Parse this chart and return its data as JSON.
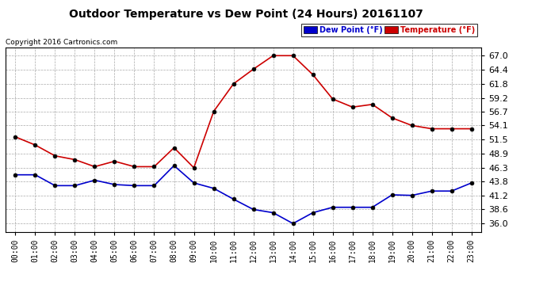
{
  "title": "Outdoor Temperature vs Dew Point (24 Hours) 20161107",
  "copyright": "Copyright 2016 Cartronics.com",
  "hours": [
    "00:00",
    "01:00",
    "02:00",
    "03:00",
    "04:00",
    "05:00",
    "06:00",
    "07:00",
    "08:00",
    "09:00",
    "10:00",
    "11:00",
    "12:00",
    "13:00",
    "14:00",
    "15:00",
    "16:00",
    "17:00",
    "18:00",
    "19:00",
    "20:00",
    "21:00",
    "22:00",
    "23:00"
  ],
  "temperature": [
    52.0,
    50.5,
    48.5,
    47.8,
    46.5,
    47.5,
    46.5,
    46.5,
    50.0,
    46.3,
    56.7,
    61.8,
    64.5,
    67.0,
    67.0,
    63.5,
    59.0,
    57.5,
    58.0,
    55.5,
    54.1,
    53.5,
    53.5,
    53.5
  ],
  "dew_point": [
    45.0,
    45.0,
    43.0,
    43.0,
    44.0,
    43.2,
    43.0,
    43.0,
    46.7,
    43.5,
    42.5,
    40.5,
    38.6,
    38.0,
    36.0,
    38.0,
    39.0,
    39.0,
    39.0,
    41.3,
    41.2,
    42.0,
    42.0,
    43.5
  ],
  "temp_color": "#cc0000",
  "dew_color": "#0000cc",
  "marker_color": "#000000",
  "ylim_min": 34.5,
  "ylim_max": 68.5,
  "yticks": [
    36.0,
    38.6,
    41.2,
    43.8,
    46.3,
    48.9,
    51.5,
    54.1,
    56.7,
    59.2,
    61.8,
    64.4,
    67.0
  ],
  "bg_color": "#ffffff",
  "grid_color": "#aaaaaa",
  "legend_dew_label": "Dew Point (°F)",
  "legend_temp_label": "Temperature (°F)"
}
